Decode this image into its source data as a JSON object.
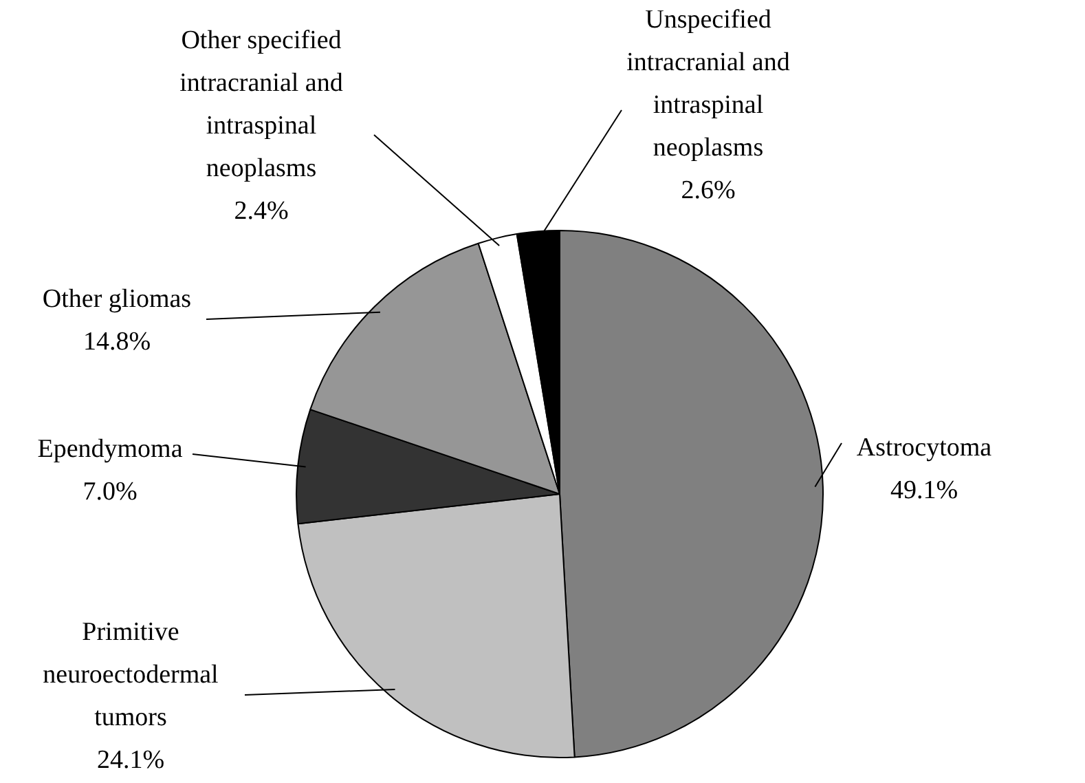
{
  "chart_data": {
    "type": "pie",
    "categories": [
      "Astrocytoma",
      "Primitive neuroectodermal tumors",
      "Ependymoma",
      "Other gliomas",
      "Other specified intracranial and intraspinal neoplasms",
      "Unspecified intracranial and intraspinal neoplasms"
    ],
    "values": [
      49.1,
      24.1,
      7.0,
      14.8,
      2.4,
      2.6
    ],
    "value_labels": [
      "49.1%",
      "24.1%",
      "7.0%",
      "14.8%",
      "2.4%",
      "2.6%"
    ],
    "colors": [
      "#808080",
      "#c0c0c0",
      "#333333",
      "#969696",
      "#ffffff",
      "#000000"
    ],
    "legend": false
  }
}
